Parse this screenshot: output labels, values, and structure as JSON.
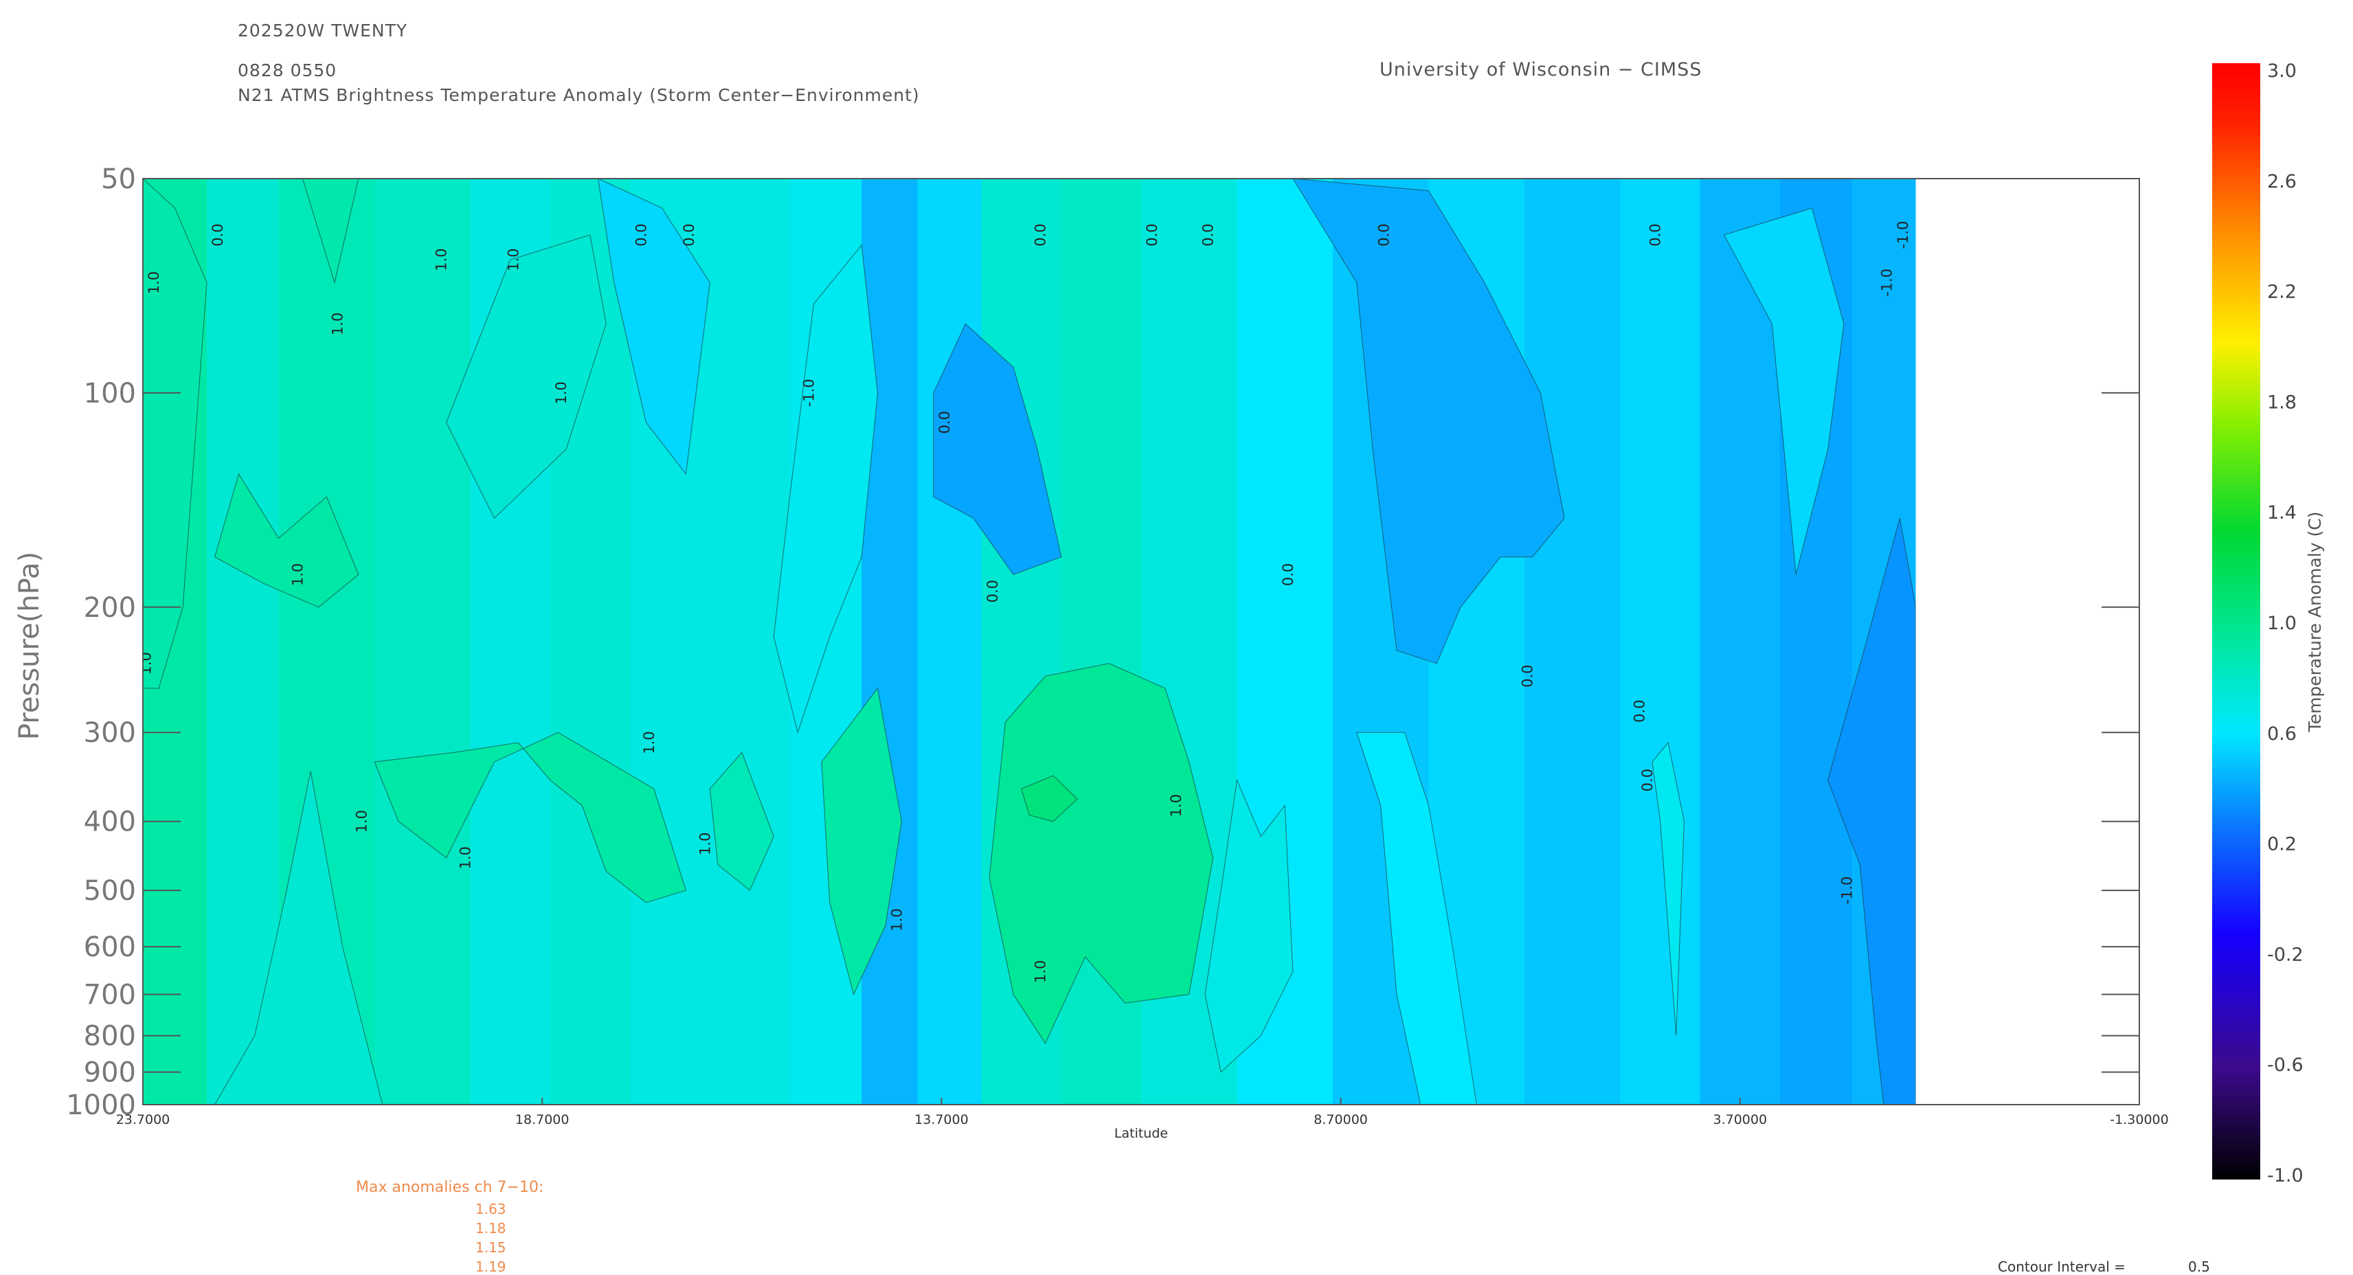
{
  "header": {
    "storm_id": "202520W TWENTY",
    "datetime": "0828 0550",
    "product": "N21 ATMS Brightness Temperature Anomaly (Storm Center−Environment)",
    "institution": "University of Wisconsin − CIMSS"
  },
  "chart_data": {
    "type": "heatmap",
    "title": "N21 ATMS Brightness Temperature Anomaly (Storm Center−Environment)",
    "xlabel": "Latitude",
    "ylabel": "Pressure(hPa)",
    "x_ticks": [
      "23.7000",
      "18.7000",
      "13.7000",
      "8.70000",
      "3.70000",
      "-1.30000"
    ],
    "x_range": [
      23.7,
      -1.3
    ],
    "y_ticks": [
      "50",
      "100",
      "200",
      "300",
      "400",
      "500",
      "600",
      "700",
      "800",
      "900",
      "1000"
    ],
    "y_scale": "log",
    "y_range": [
      50,
      1000
    ],
    "data_extent_lat": [
      23.7,
      1.5
    ],
    "contour_labels": [
      "1.0",
      "0.0",
      "-1.0"
    ],
    "colorbar": {
      "label": "Temperature Anomaly (C)",
      "ticks": [
        "3.0",
        "2.6",
        "2.2",
        "1.8",
        "1.4",
        "1.0",
        "0.6",
        "0.2",
        "-0.2",
        "-0.6",
        "-1.0"
      ],
      "range": [
        -1.0,
        3.0
      ]
    },
    "bands": [
      {
        "lat_from": 23.7,
        "lat_to": 22.9,
        "value": 0.9
      },
      {
        "lat_from": 22.9,
        "lat_to": 22.0,
        "value": 0.75
      },
      {
        "lat_from": 22.0,
        "lat_to": 20.8,
        "value": 0.85
      },
      {
        "lat_from": 20.8,
        "lat_to": 19.6,
        "value": 0.8
      },
      {
        "lat_from": 19.6,
        "lat_to": 18.6,
        "value": 0.7
      },
      {
        "lat_from": 18.6,
        "lat_to": 17.6,
        "value": 0.75
      },
      {
        "lat_from": 17.6,
        "lat_to": 16.6,
        "value": 0.7
      },
      {
        "lat_from": 16.6,
        "lat_to": 15.6,
        "value": 0.7
      },
      {
        "lat_from": 15.6,
        "lat_to": 14.7,
        "value": 0.65
      },
      {
        "lat_from": 14.7,
        "lat_to": 14.0,
        "value": 0.45
      },
      {
        "lat_from": 14.0,
        "lat_to": 13.2,
        "value": 0.55
      },
      {
        "lat_from": 13.2,
        "lat_to": 12.2,
        "value": 0.75
      },
      {
        "lat_from": 12.2,
        "lat_to": 11.2,
        "value": 0.8
      },
      {
        "lat_from": 11.2,
        "lat_to": 10.0,
        "value": 0.72
      },
      {
        "lat_from": 10.0,
        "lat_to": 8.8,
        "value": 0.6
      },
      {
        "lat_from": 8.8,
        "lat_to": 7.6,
        "value": 0.5
      },
      {
        "lat_from": 7.6,
        "lat_to": 6.4,
        "value": 0.55
      },
      {
        "lat_from": 6.4,
        "lat_to": 5.2,
        "value": 0.5
      },
      {
        "lat_from": 5.2,
        "lat_to": 4.2,
        "value": 0.55
      },
      {
        "lat_from": 4.2,
        "lat_to": 3.2,
        "value": 0.45
      },
      {
        "lat_from": 3.2,
        "lat_to": 2.3,
        "value": 0.4
      },
      {
        "lat_from": 2.3,
        "lat_to": 1.5,
        "value": 0.45
      }
    ]
  },
  "annotations": {
    "max_title": "Max anomalies ch 7−10:",
    "max_values": [
      "1.63",
      "1.18",
      "1.15",
      "1.19"
    ],
    "contour_interval_label": "Contour Interval =",
    "contour_interval_value": "0.5"
  }
}
